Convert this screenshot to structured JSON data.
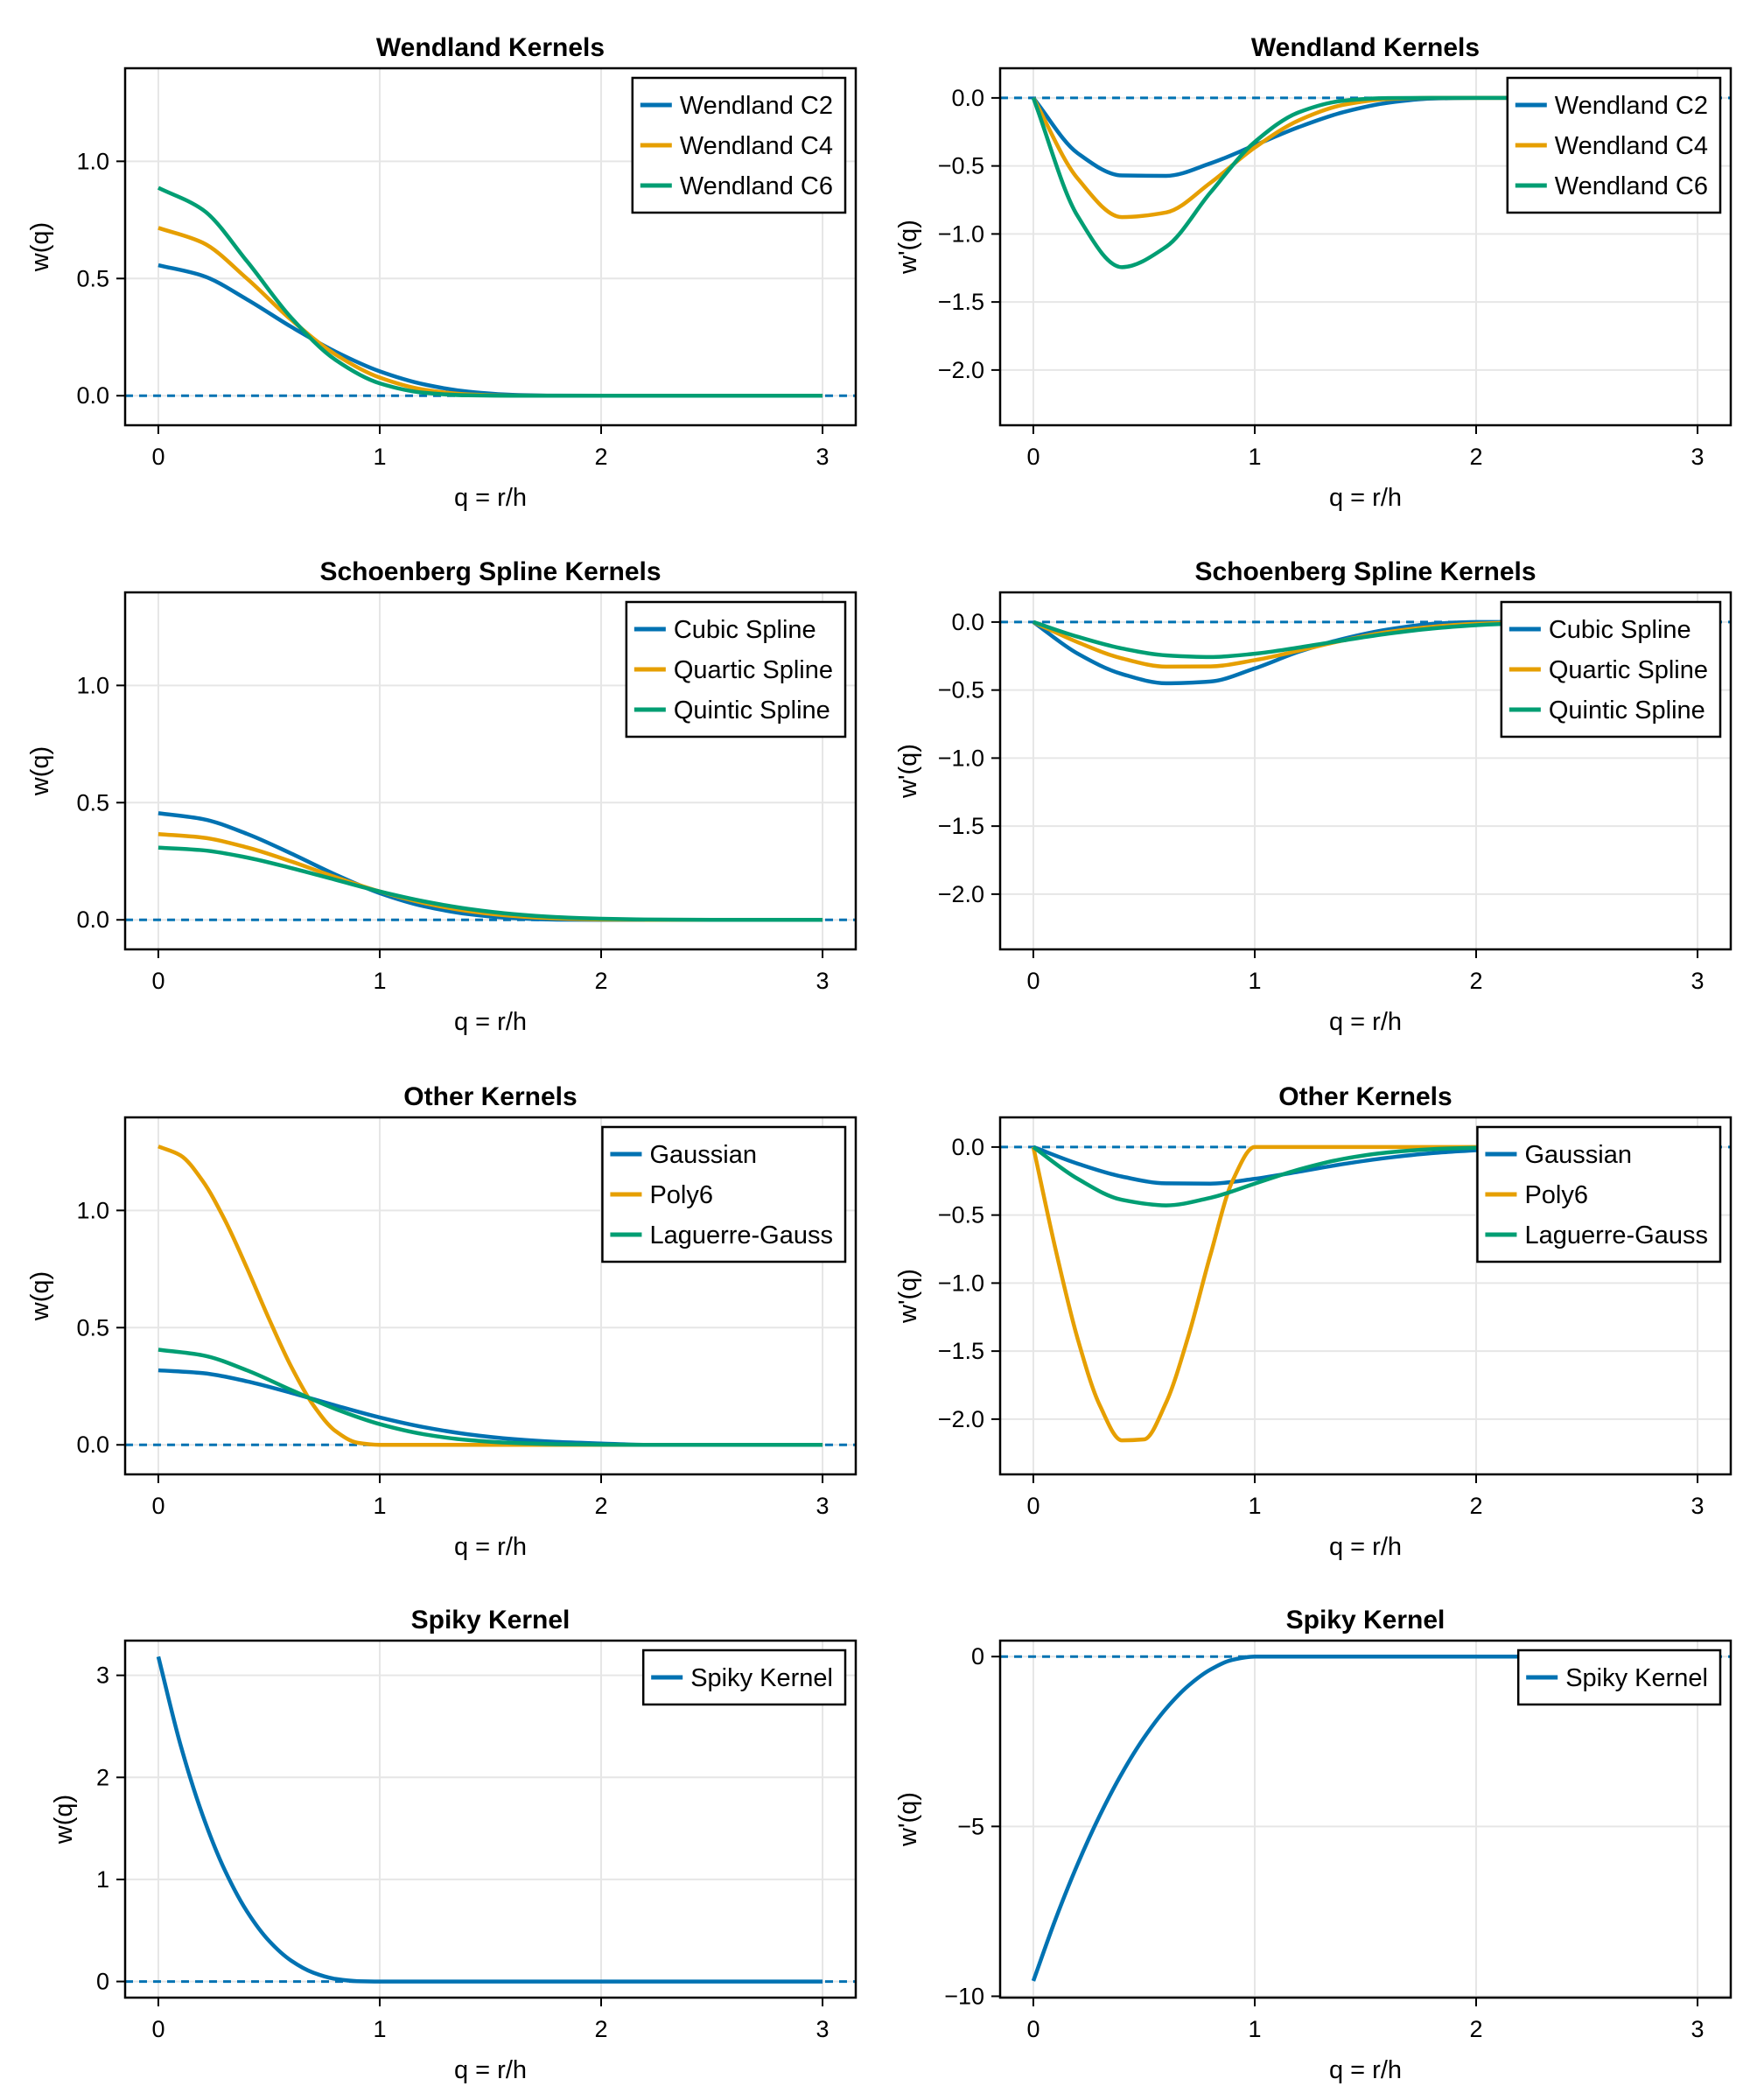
{
  "chart_data": [
    {
      "type": "line",
      "title": "Wendland Kernels",
      "xlabel": "q = r/h",
      "ylabel": "w(q)",
      "xlim": [
        -0.15,
        3.15
      ],
      "ylim": [
        -0.126,
        1.397
      ],
      "grid": true,
      "legend": "top-right",
      "reference_line": {
        "y": 0,
        "style": "dashed",
        "color": "#0072B2"
      },
      "xticks": [
        {
          "value": 0,
          "label": "0"
        },
        {
          "value": 1,
          "label": "1"
        },
        {
          "value": 2,
          "label": "2"
        },
        {
          "value": 3,
          "label": "3"
        }
      ],
      "yticks": [
        {
          "value": 0,
          "label": "0.0"
        },
        {
          "value": 0.5,
          "label": "0.5"
        },
        {
          "value": 1,
          "label": "1.0"
        }
      ],
      "x": [
        0,
        0.2,
        0.4,
        0.6,
        0.8,
        1.0,
        1.2,
        1.4,
        1.6,
        1.8,
        2.0,
        2.2,
        2.4,
        2.6,
        2.8,
        3.0
      ],
      "series": [
        {
          "name": "Wendland C2",
          "color": "#0072B2",
          "y": [
            0.557,
            0.512,
            0.411,
            0.294,
            0.188,
            0.104,
            0.0485,
            0.0172,
            0.0037,
            0.0003,
            0,
            0,
            0,
            0,
            0,
            0
          ]
        },
        {
          "name": "Wendland C4",
          "color": "#E69F00",
          "y": [
            0.716,
            0.653,
            0.5,
            0.324,
            0.176,
            0.0774,
            0.0258,
            0.0057,
            0.0006,
            0,
            0,
            0,
            0,
            0,
            0,
            0
          ]
        },
        {
          "name": "Wendland C6",
          "color": "#009E73",
          "y": [
            0.887,
            0.794,
            0.574,
            0.333,
            0.153,
            0.0528,
            0.0126,
            0.0017,
            0.0001,
            0,
            0,
            0,
            0,
            0,
            0,
            0
          ]
        }
      ]
    },
    {
      "type": "line",
      "title": "Wendland Kernels",
      "xlabel": "q = r/h",
      "ylabel": "w'(q)",
      "xlim": [
        -0.15,
        3.15
      ],
      "ylim": [
        -2.406,
        0.218
      ],
      "grid": true,
      "legend": "top-right",
      "reference_line": {
        "y": 0,
        "style": "dashed",
        "color": "#0072B2"
      },
      "xticks": [
        {
          "value": 0,
          "label": "0"
        },
        {
          "value": 1,
          "label": "1"
        },
        {
          "value": 2,
          "label": "2"
        },
        {
          "value": 3,
          "label": "3"
        }
      ],
      "yticks": [
        {
          "value": 0,
          "label": "0.0"
        },
        {
          "value": -0.5,
          "label": "−0.5"
        },
        {
          "value": -1,
          "label": "−1.0"
        },
        {
          "value": -1.5,
          "label": "−1.5"
        },
        {
          "value": -2,
          "label": "−2.0"
        }
      ],
      "x": [
        0,
        0.2,
        0.4,
        0.6,
        0.8,
        1.0,
        1.2,
        1.4,
        1.6,
        1.8,
        2.0,
        2.2,
        2.4,
        2.6,
        2.8,
        3.0
      ],
      "series": [
        {
          "name": "Wendland C2",
          "color": "#0072B2",
          "y": [
            0,
            -0.406,
            -0.57,
            -0.573,
            -0.481,
            -0.348,
            -0.214,
            -0.105,
            -0.036,
            -0.005,
            0,
            0,
            0,
            0,
            0,
            0
          ]
        },
        {
          "name": "Wendland C4",
          "color": "#E69F00",
          "y": [
            0,
            -0.592,
            -0.876,
            -0.842,
            -0.624,
            -0.365,
            -0.164,
            -0.051,
            -0.0086,
            0,
            0,
            0,
            0,
            0,
            0,
            0
          ]
        },
        {
          "name": "Wendland C6",
          "color": "#009E73",
          "y": [
            0,
            -0.868,
            -1.244,
            -1.094,
            -0.695,
            -0.324,
            -0.105,
            -0.0205,
            -0.0017,
            0,
            0,
            0,
            0,
            0,
            0,
            0
          ]
        }
      ]
    },
    {
      "type": "line",
      "title": "Schoenberg Spline Kernels",
      "xlabel": "q = r/h",
      "ylabel": "w(q)",
      "xlim": [
        -0.15,
        3.15
      ],
      "ylim": [
        -0.126,
        1.397
      ],
      "grid": true,
      "legend": "top-right",
      "reference_line": {
        "y": 0,
        "style": "dashed",
        "color": "#0072B2"
      },
      "xticks": [
        {
          "value": 0,
          "label": "0"
        },
        {
          "value": 1,
          "label": "1"
        },
        {
          "value": 2,
          "label": "2"
        },
        {
          "value": 3,
          "label": "3"
        }
      ],
      "yticks": [
        {
          "value": 0,
          "label": "0.0"
        },
        {
          "value": 0.5,
          "label": "0.5"
        },
        {
          "value": 1,
          "label": "1.0"
        }
      ],
      "x": [
        0,
        0.2,
        0.4,
        0.6,
        0.8,
        1.0,
        1.2,
        1.4,
        1.6,
        1.8,
        2.0,
        2.2,
        2.4,
        2.6,
        2.8,
        3.0
      ],
      "series": [
        {
          "name": "Cubic Spline",
          "color": "#0072B2",
          "y": [
            0.455,
            0.43,
            0.367,
            0.283,
            0.193,
            0.114,
            0.058,
            0.0246,
            0.0073,
            0.0009,
            0,
            0,
            0,
            0,
            0,
            0
          ]
        },
        {
          "name": "Quartic Spline",
          "color": "#E69F00",
          "y": [
            0.366,
            0.351,
            0.309,
            0.249,
            0.182,
            0.121,
            0.0718,
            0.0373,
            0.0167,
            0.0061,
            0.0016,
            0.0002,
            0,
            0,
            0,
            0
          ]
        },
        {
          "name": "Quintic Spline",
          "color": "#009E73",
          "y": [
            0.308,
            0.297,
            0.266,
            0.221,
            0.171,
            0.121,
            0.0789,
            0.0467,
            0.0248,
            0.0116,
            0.0047,
            0.0015,
            0.0004,
            0,
            0,
            0
          ]
        }
      ]
    },
    {
      "type": "line",
      "title": "Schoenberg Spline Kernels",
      "xlabel": "q = r/h",
      "ylabel": "w'(q)",
      "xlim": [
        -0.15,
        3.15
      ],
      "ylim": [
        -2.406,
        0.218
      ],
      "grid": true,
      "legend": "top-right",
      "reference_line": {
        "y": 0,
        "style": "dashed",
        "color": "#0072B2"
      },
      "xticks": [
        {
          "value": 0,
          "label": "0"
        },
        {
          "value": 1,
          "label": "1"
        },
        {
          "value": 2,
          "label": "2"
        },
        {
          "value": 3,
          "label": "3"
        }
      ],
      "yticks": [
        {
          "value": 0,
          "label": "0.0"
        },
        {
          "value": -0.5,
          "label": "−0.5"
        },
        {
          "value": -1,
          "label": "−1.0"
        },
        {
          "value": -1.5,
          "label": "−1.5"
        },
        {
          "value": -2,
          "label": "−2.0"
        }
      ],
      "x": [
        0,
        0.2,
        0.4,
        0.6,
        0.8,
        1.0,
        1.2,
        1.4,
        1.6,
        1.8,
        2.0,
        2.2,
        2.4,
        2.6,
        2.8,
        3.0
      ],
      "series": [
        {
          "name": "Cubic Spline",
          "color": "#0072B2",
          "y": [
            0,
            -0.232,
            -0.382,
            -0.45,
            -0.437,
            -0.341,
            -0.218,
            -0.123,
            -0.055,
            -0.014,
            0,
            0,
            0,
            0,
            0,
            0
          ]
        },
        {
          "name": "Quartic Spline",
          "color": "#E69F00",
          "y": [
            0,
            -0.148,
            -0.267,
            -0.328,
            -0.326,
            -0.28,
            -0.21,
            -0.135,
            -0.074,
            -0.035,
            -0.0127,
            -0.0028,
            -0.0001,
            0,
            0,
            0
          ]
        },
        {
          "name": "Quintic Spline",
          "color": "#009E73",
          "y": [
            0,
            -0.108,
            -0.194,
            -0.245,
            -0.257,
            -0.233,
            -0.187,
            -0.135,
            -0.086,
            -0.048,
            -0.023,
            -0.0095,
            -0.003,
            -0.0006,
            0,
            0
          ]
        }
      ]
    },
    {
      "type": "line",
      "title": "Other Kernels",
      "xlabel": "q = r/h",
      "ylabel": "w(q)",
      "xlim": [
        -0.15,
        3.15
      ],
      "ylim": [
        -0.126,
        1.397
      ],
      "grid": true,
      "legend": "top-right",
      "reference_line": {
        "y": 0,
        "style": "dashed",
        "color": "#0072B2"
      },
      "xticks": [
        {
          "value": 0,
          "label": "0"
        },
        {
          "value": 1,
          "label": "1"
        },
        {
          "value": 2,
          "label": "2"
        },
        {
          "value": 3,
          "label": "3"
        }
      ],
      "yticks": [
        {
          "value": 0,
          "label": "0.0"
        },
        {
          "value": 0.5,
          "label": "0.5"
        },
        {
          "value": 1,
          "label": "1.0"
        }
      ],
      "x": [
        0,
        0.2,
        0.4,
        0.6,
        0.8,
        1.0,
        1.2,
        1.4,
        1.6,
        1.8,
        2.0,
        2.2,
        2.4,
        2.6,
        2.8,
        3.0
      ],
      "series": [
        {
          "name": "Gaussian",
          "color": "#0072B2",
          "y": [
            0.318,
            0.306,
            0.271,
            0.222,
            0.168,
            0.117,
            0.0754,
            0.0448,
            0.0246,
            0.0125,
            0.0058,
            0,
            0,
            0,
            0,
            0
          ]
        },
        {
          "name": "Poly6",
          "color": "#E69F00",
          "x": [
            0,
            0.1,
            0.2,
            0.3,
            0.4,
            0.5,
            0.6,
            0.7,
            0.8,
            0.9,
            1.0,
            1.5,
            2.0,
            2.5,
            3.0
          ],
          "y": [
            1.273,
            1.235,
            1.126,
            0.96,
            0.755,
            0.537,
            0.334,
            0.169,
            0.059,
            0.009,
            0,
            0,
            0,
            0,
            0
          ]
        },
        {
          "name": "Laguerre-Gauss",
          "color": "#009E73",
          "y": [
            0.406,
            0.382,
            0.318,
            0.234,
            0.153,
            0.0883,
            0.0451,
            0.0204,
            0.0082,
            0.0029,
            0.0009,
            0,
            0,
            0,
            0,
            0
          ]
        }
      ]
    },
    {
      "type": "line",
      "title": "Other Kernels",
      "xlabel": "q = r/h",
      "ylabel": "w'(q)",
      "xlim": [
        -0.15,
        3.15
      ],
      "ylim": [
        -2.406,
        0.218
      ],
      "grid": true,
      "legend": "top-right",
      "reference_line": {
        "y": 0,
        "style": "dashed",
        "color": "#0072B2"
      },
      "xticks": [
        {
          "value": 0,
          "label": "0"
        },
        {
          "value": 1,
          "label": "1"
        },
        {
          "value": 2,
          "label": "2"
        },
        {
          "value": 3,
          "label": "3"
        }
      ],
      "yticks": [
        {
          "value": 0,
          "label": "0.0"
        },
        {
          "value": -0.5,
          "label": "−0.5"
        },
        {
          "value": -1,
          "label": "−1.0"
        },
        {
          "value": -1.5,
          "label": "−1.5"
        },
        {
          "value": -2,
          "label": "−2.0"
        }
      ],
      "x": [
        0,
        0.2,
        0.4,
        0.6,
        0.8,
        1.0,
        1.2,
        1.4,
        1.6,
        1.8,
        2.0,
        2.2,
        2.4,
        2.6,
        2.8,
        3.0
      ],
      "series": [
        {
          "name": "Gaussian",
          "color": "#0072B2",
          "y": [
            0,
            -0.122,
            -0.217,
            -0.267,
            -0.269,
            -0.234,
            -0.181,
            -0.125,
            -0.079,
            -0.045,
            -0.023,
            0,
            0,
            0,
            0,
            0
          ]
        },
        {
          "name": "Poly6",
          "color": "#E69F00",
          "x": [
            0,
            0.1,
            0.2,
            0.3,
            0.4,
            0.5,
            0.6,
            0.7,
            0.8,
            0.9,
            1.0,
            1.5,
            2.0,
            2.5,
            3.0
          ],
          "y": [
            0,
            -0.749,
            -1.408,
            -1.898,
            -2.156,
            -2.149,
            -1.877,
            -1.391,
            -0.792,
            -0.248,
            0,
            0,
            0,
            0,
            0
          ]
        },
        {
          "name": "Laguerre-Gauss",
          "color": "#009E73",
          "y": [
            0,
            -0.233,
            -0.388,
            -0.429,
            -0.373,
            -0.269,
            -0.165,
            -0.087,
            -0.04,
            -0.016,
            -0.0055,
            0,
            0,
            0,
            0,
            0
          ]
        }
      ]
    },
    {
      "type": "line",
      "title": "Spiky Kernel",
      "xlabel": "q = r/h",
      "ylabel": "w(q)",
      "xlim": [
        -0.15,
        3.15
      ],
      "ylim": [
        -0.158,
        3.34
      ],
      "grid": true,
      "legend": "top-right",
      "reference_line": {
        "y": 0,
        "style": "dashed",
        "color": "#0072B2"
      },
      "xticks": [
        {
          "value": 0,
          "label": "0"
        },
        {
          "value": 1,
          "label": "1"
        },
        {
          "value": 2,
          "label": "2"
        },
        {
          "value": 3,
          "label": "3"
        }
      ],
      "yticks": [
        {
          "value": 0,
          "label": "0"
        },
        {
          "value": 1,
          "label": "1"
        },
        {
          "value": 2,
          "label": "2"
        },
        {
          "value": 3,
          "label": "3"
        }
      ],
      "x": [
        0,
        0.1,
        0.2,
        0.3,
        0.4,
        0.5,
        0.6,
        0.7,
        0.8,
        0.9,
        1.0,
        1.5,
        2.0,
        2.5,
        3.0
      ],
      "series": [
        {
          "name": "Spiky Kernel",
          "color": "#0072B2",
          "y": [
            3.183,
            2.32,
            1.63,
            1.092,
            0.688,
            0.398,
            0.204,
            0.086,
            0.025,
            0.003,
            0,
            0,
            0,
            0,
            0
          ]
        }
      ]
    },
    {
      "type": "line",
      "title": "Spiky Kernel",
      "xlabel": "q = r/h",
      "ylabel": "w'(q)",
      "xlim": [
        -0.15,
        3.15
      ],
      "ylim": [
        -10.04,
        0.47
      ],
      "grid": true,
      "legend": "top-right",
      "reference_line": {
        "y": 0,
        "style": "dashed",
        "color": "#0072B2"
      },
      "xticks": [
        {
          "value": 0,
          "label": "0"
        },
        {
          "value": 1,
          "label": "1"
        },
        {
          "value": 2,
          "label": "2"
        },
        {
          "value": 3,
          "label": "3"
        }
      ],
      "yticks": [
        {
          "value": 0,
          "label": "0"
        },
        {
          "value": -5,
          "label": "−5"
        },
        {
          "value": -10,
          "label": "−10"
        }
      ],
      "x": [
        0,
        0.1,
        0.2,
        0.3,
        0.4,
        0.5,
        0.6,
        0.7,
        0.8,
        0.9,
        1.0,
        1.5,
        2.0,
        2.5,
        3.0
      ],
      "series": [
        {
          "name": "Spiky Kernel",
          "color": "#0072B2",
          "y": [
            -9.549,
            -7.735,
            -6.111,
            -4.679,
            -3.438,
            -2.387,
            -1.528,
            -0.859,
            -0.382,
            -0.095,
            0,
            0,
            0,
            0,
            0
          ]
        }
      ]
    }
  ]
}
